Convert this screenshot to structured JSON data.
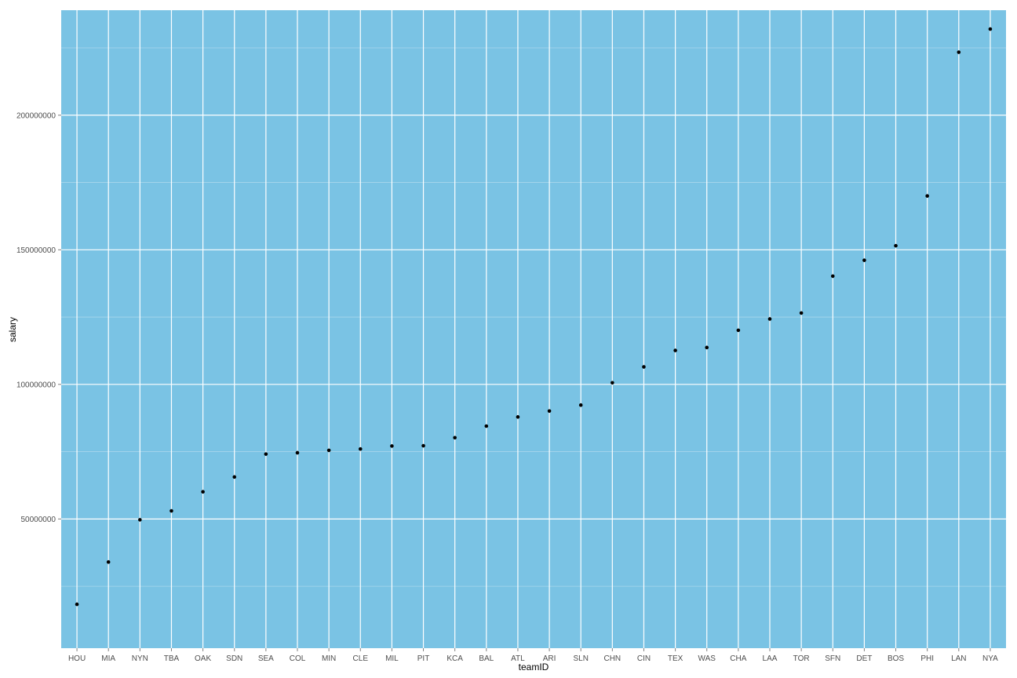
{
  "chart_data": {
    "type": "scatter",
    "xlabel": "teamID",
    "ylabel": "salary",
    "ylim": [
      2000000,
      239000000
    ],
    "y_ticks": [
      50000000,
      100000000,
      150000000,
      200000000
    ],
    "y_tick_labels": [
      "50000000",
      "100000000",
      "150000000",
      "200000000"
    ],
    "grid": true,
    "categories": [
      "HOU",
      "MIA",
      "NYN",
      "TBA",
      "OAK",
      "SDN",
      "SEA",
      "COL",
      "MIN",
      "CLE",
      "MIL",
      "PIT",
      "KCA",
      "BAL",
      "ATL",
      "ARI",
      "SLN",
      "CHN",
      "CIN",
      "TEX",
      "WAS",
      "CHA",
      "LAA",
      "TOR",
      "SFN",
      "DET",
      "BOS",
      "PHI",
      "LAN",
      "NYA"
    ],
    "values": [
      18300000,
      34000000,
      49700000,
      53000000,
      60100000,
      65600000,
      74100000,
      74600000,
      75500000,
      76000000,
      77100000,
      77200000,
      80200000,
      84500000,
      87900000,
      90100000,
      92300000,
      100600000,
      106500000,
      112600000,
      113700000,
      120100000,
      124300000,
      126500000,
      140200000,
      146100000,
      151500000,
      170000000,
      223400000,
      232000000
    ],
    "colors": {
      "panel": "#7ac3e4",
      "grid_major": "#ffffff",
      "grid_minor": "#a8d7ec",
      "point": "#000000"
    }
  }
}
